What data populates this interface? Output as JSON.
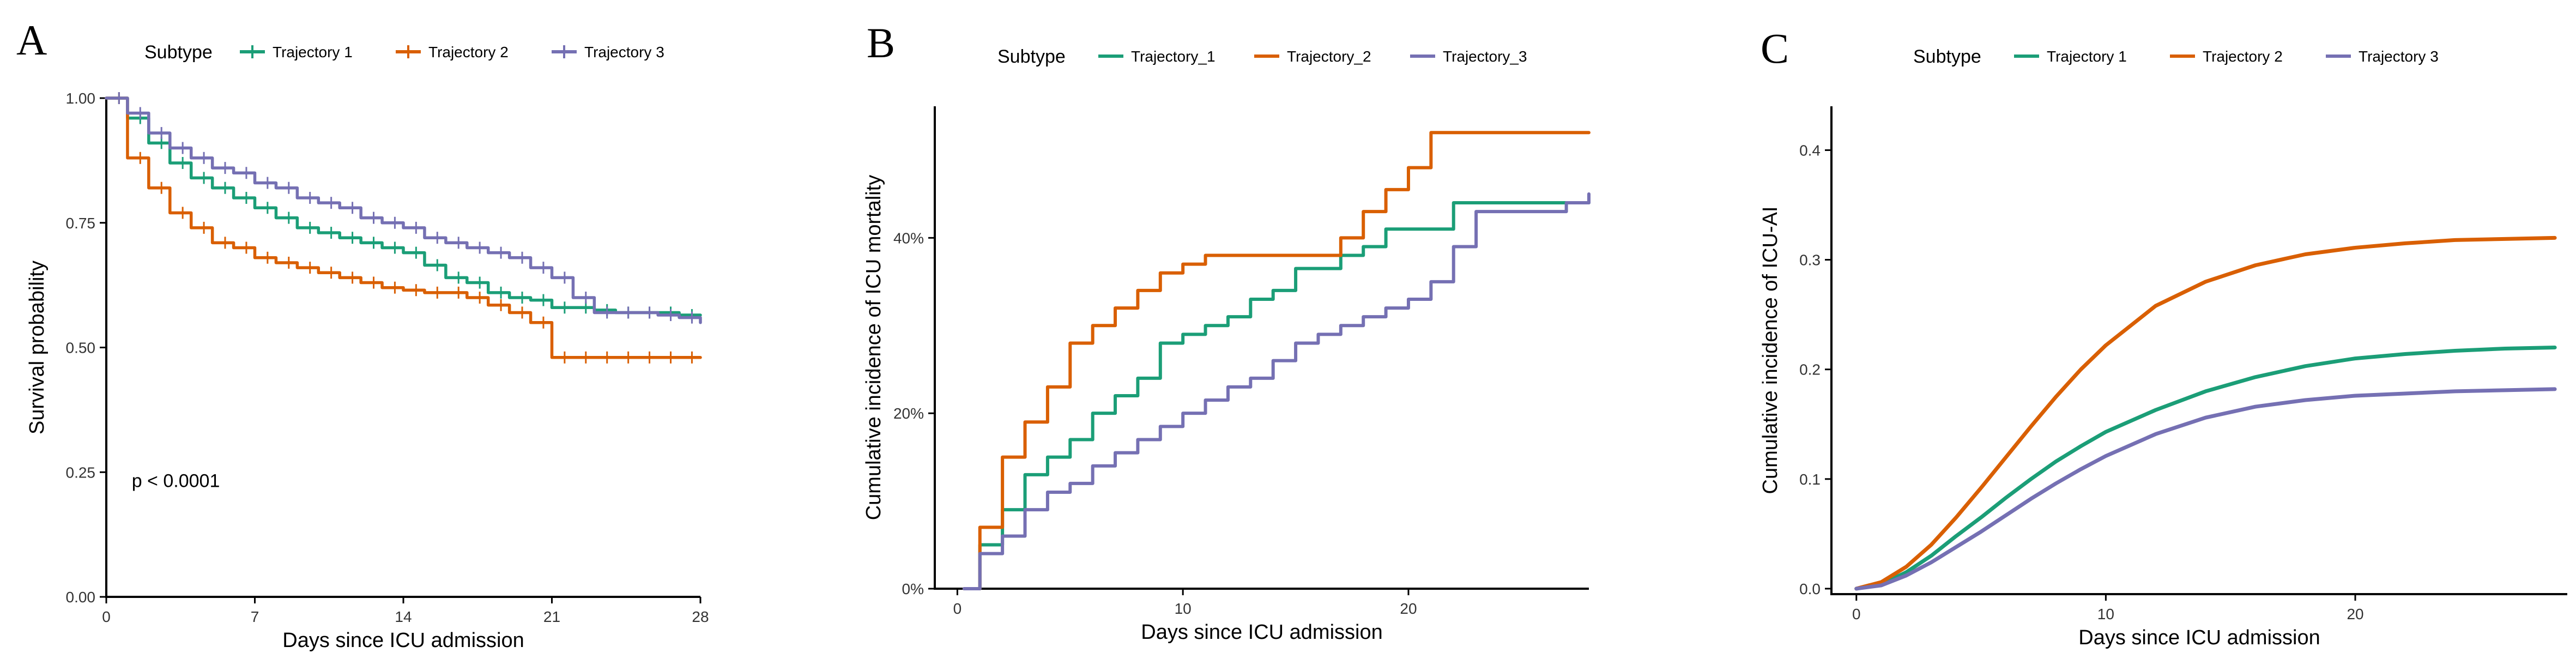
{
  "colors": {
    "green": "#1b9e77",
    "orange": "#d95f02",
    "purple": "#7570b3"
  },
  "chart_data": [
    {
      "type": "line",
      "panel_label": "A",
      "xlabel": "Days since ICU admission",
      "ylabel": "Survival probability",
      "xlim": [
        0,
        28
      ],
      "ylim": [
        0,
        1
      ],
      "xticks": [
        0,
        7,
        14,
        21,
        28
      ],
      "xtick_labels": [
        "0",
        "7",
        "14",
        "21",
        "28"
      ],
      "yticks": [
        0,
        0.25,
        0.5,
        0.75,
        1
      ],
      "ytick_labels": [
        "0.00",
        "0.25",
        "0.50",
        "0.75",
        "1.00"
      ],
      "legend_title": "Subtype",
      "legend_position": "top",
      "grid": false,
      "step": true,
      "censor_marks": true,
      "annotation": "p < 0.0001",
      "series": [
        {
          "name": "Trajectory 1",
          "color": "#1b9e77",
          "x": [
            0,
            1,
            2,
            3,
            4,
            5,
            6,
            7,
            8,
            9,
            10,
            11,
            12,
            13,
            14,
            15,
            16,
            17,
            18,
            19,
            20,
            21,
            22,
            23,
            24,
            25,
            26,
            27,
            28
          ],
          "y": [
            1.0,
            0.96,
            0.91,
            0.87,
            0.84,
            0.82,
            0.8,
            0.78,
            0.76,
            0.74,
            0.73,
            0.72,
            0.71,
            0.7,
            0.69,
            0.665,
            0.64,
            0.63,
            0.61,
            0.6,
            0.595,
            0.58,
            0.58,
            0.575,
            0.57,
            0.57,
            0.57,
            0.565,
            0.565
          ]
        },
        {
          "name": "Trajectory 2",
          "color": "#d95f02",
          "x": [
            0,
            1,
            2,
            3,
            4,
            5,
            6,
            7,
            8,
            9,
            10,
            11,
            12,
            13,
            14,
            15,
            16,
            17,
            18,
            19,
            20,
            21,
            22,
            23,
            24,
            25,
            26,
            27,
            28
          ],
          "y": [
            1.0,
            0.88,
            0.82,
            0.77,
            0.74,
            0.71,
            0.7,
            0.68,
            0.67,
            0.66,
            0.65,
            0.64,
            0.63,
            0.62,
            0.615,
            0.61,
            0.61,
            0.6,
            0.585,
            0.57,
            0.55,
            0.48,
            0.48,
            0.48,
            0.48,
            0.48,
            0.48,
            0.48,
            0.48
          ]
        },
        {
          "name": "Trajectory 3",
          "color": "#7570b3",
          "x": [
            0,
            1,
            2,
            3,
            4,
            5,
            6,
            7,
            8,
            9,
            10,
            11,
            12,
            13,
            14,
            15,
            16,
            17,
            18,
            19,
            20,
            21,
            22,
            23,
            24,
            25,
            26,
            27,
            28
          ],
          "y": [
            1.0,
            0.97,
            0.93,
            0.9,
            0.88,
            0.86,
            0.85,
            0.83,
            0.82,
            0.8,
            0.79,
            0.78,
            0.76,
            0.75,
            0.74,
            0.72,
            0.71,
            0.7,
            0.69,
            0.68,
            0.66,
            0.64,
            0.6,
            0.57,
            0.57,
            0.57,
            0.565,
            0.56,
            0.55
          ]
        }
      ]
    },
    {
      "type": "line",
      "panel_label": "B",
      "xlabel": "Days since ICU admission",
      "ylabel": "Cumulative incidence of ICU mortality",
      "xlim": [
        -1,
        28
      ],
      "ylim": [
        0,
        0.55
      ],
      "xticks": [
        0,
        10,
        20
      ],
      "xtick_labels": [
        "0",
        "10",
        "20"
      ],
      "yticks": [
        0,
        0.2,
        0.4
      ],
      "ytick_labels": [
        "0%",
        "20%",
        "40%"
      ],
      "legend_title": "Subtype",
      "legend_position": "top",
      "grid": false,
      "step": true,
      "series": [
        {
          "name": "Trajectory_1",
          "color": "#1b9e77",
          "x": [
            0.3,
            1,
            2,
            3,
            4,
            5,
            6,
            7,
            8,
            9,
            10,
            11,
            12,
            13,
            14,
            15,
            16,
            17,
            18,
            19,
            20,
            21,
            22,
            23,
            24,
            25,
            26,
            27,
            28
          ],
          "y": [
            0.0,
            0.05,
            0.09,
            0.13,
            0.15,
            0.17,
            0.2,
            0.22,
            0.24,
            0.28,
            0.29,
            0.3,
            0.31,
            0.33,
            0.34,
            0.365,
            0.365,
            0.38,
            0.39,
            0.41,
            0.41,
            0.41,
            0.44,
            0.44,
            0.44,
            0.44,
            0.44,
            0.44,
            0.44
          ]
        },
        {
          "name": "Trajectory_2",
          "color": "#d95f02",
          "x": [
            0.3,
            1,
            2,
            3,
            4,
            5,
            6,
            7,
            8,
            9,
            10,
            11,
            12,
            13,
            14,
            15,
            16,
            17,
            18,
            19,
            20,
            21,
            22,
            23,
            24,
            25,
            26,
            27,
            28
          ],
          "y": [
            0.0,
            0.07,
            0.15,
            0.19,
            0.23,
            0.28,
            0.3,
            0.32,
            0.34,
            0.36,
            0.37,
            0.38,
            0.38,
            0.38,
            0.38,
            0.38,
            0.38,
            0.4,
            0.43,
            0.455,
            0.48,
            0.52,
            0.52,
            0.52,
            0.52,
            0.52,
            0.52,
            0.52,
            0.52
          ]
        },
        {
          "name": "Trajectory_3",
          "color": "#7570b3",
          "x": [
            0.3,
            1,
            2,
            3,
            4,
            5,
            6,
            7,
            8,
            9,
            10,
            11,
            12,
            13,
            14,
            15,
            16,
            17,
            18,
            19,
            20,
            21,
            22,
            23,
            24,
            25,
            26,
            27,
            28
          ],
          "y": [
            0.0,
            0.04,
            0.06,
            0.09,
            0.11,
            0.12,
            0.14,
            0.155,
            0.17,
            0.185,
            0.2,
            0.215,
            0.23,
            0.24,
            0.26,
            0.28,
            0.29,
            0.3,
            0.31,
            0.32,
            0.33,
            0.35,
            0.39,
            0.43,
            0.43,
            0.43,
            0.43,
            0.44,
            0.45
          ]
        }
      ]
    },
    {
      "type": "line",
      "panel_label": "C",
      "xlabel": "Days since ICU admission",
      "ylabel": "Cumulative incidence of ICU-AI",
      "xlim": [
        -1,
        28.5
      ],
      "ylim": [
        -0.005,
        0.44
      ],
      "xticks": [
        0,
        10,
        20
      ],
      "xtick_labels": [
        "0",
        "10",
        "20"
      ],
      "yticks": [
        0,
        0.1,
        0.2,
        0.3,
        0.4
      ],
      "ytick_labels": [
        "0.0",
        "0.1",
        "0.2",
        "0.3",
        "0.4"
      ],
      "legend_title": "Subtype",
      "legend_position": "top",
      "grid": false,
      "step": false,
      "series": [
        {
          "name": "Trajectory 1",
          "color": "#1b9e77",
          "x": [
            0,
            1,
            2,
            3,
            4,
            5,
            6,
            7,
            8,
            9,
            10,
            12,
            14,
            16,
            18,
            20,
            22,
            24,
            26,
            28
          ],
          "y": [
            0.0,
            0.004,
            0.015,
            0.03,
            0.048,
            0.065,
            0.083,
            0.1,
            0.116,
            0.13,
            0.143,
            0.163,
            0.18,
            0.193,
            0.203,
            0.21,
            0.214,
            0.217,
            0.219,
            0.22
          ]
        },
        {
          "name": "Trajectory 2",
          "color": "#d95f02",
          "x": [
            0,
            1,
            2,
            3,
            4,
            5,
            6,
            7,
            8,
            9,
            10,
            12,
            14,
            16,
            18,
            20,
            22,
            24,
            26,
            28
          ],
          "y": [
            0.0,
            0.006,
            0.02,
            0.04,
            0.065,
            0.092,
            0.12,
            0.148,
            0.175,
            0.2,
            0.222,
            0.258,
            0.28,
            0.295,
            0.305,
            0.311,
            0.315,
            0.318,
            0.319,
            0.32
          ]
        },
        {
          "name": "Trajectory 3",
          "color": "#7570b3",
          "x": [
            0,
            1,
            2,
            3,
            4,
            5,
            6,
            7,
            8,
            9,
            10,
            12,
            14,
            16,
            18,
            20,
            22,
            24,
            26,
            28
          ],
          "y": [
            0.0,
            0.003,
            0.012,
            0.024,
            0.038,
            0.052,
            0.067,
            0.082,
            0.096,
            0.109,
            0.121,
            0.141,
            0.156,
            0.166,
            0.172,
            0.176,
            0.178,
            0.18,
            0.181,
            0.182
          ]
        }
      ]
    }
  ]
}
